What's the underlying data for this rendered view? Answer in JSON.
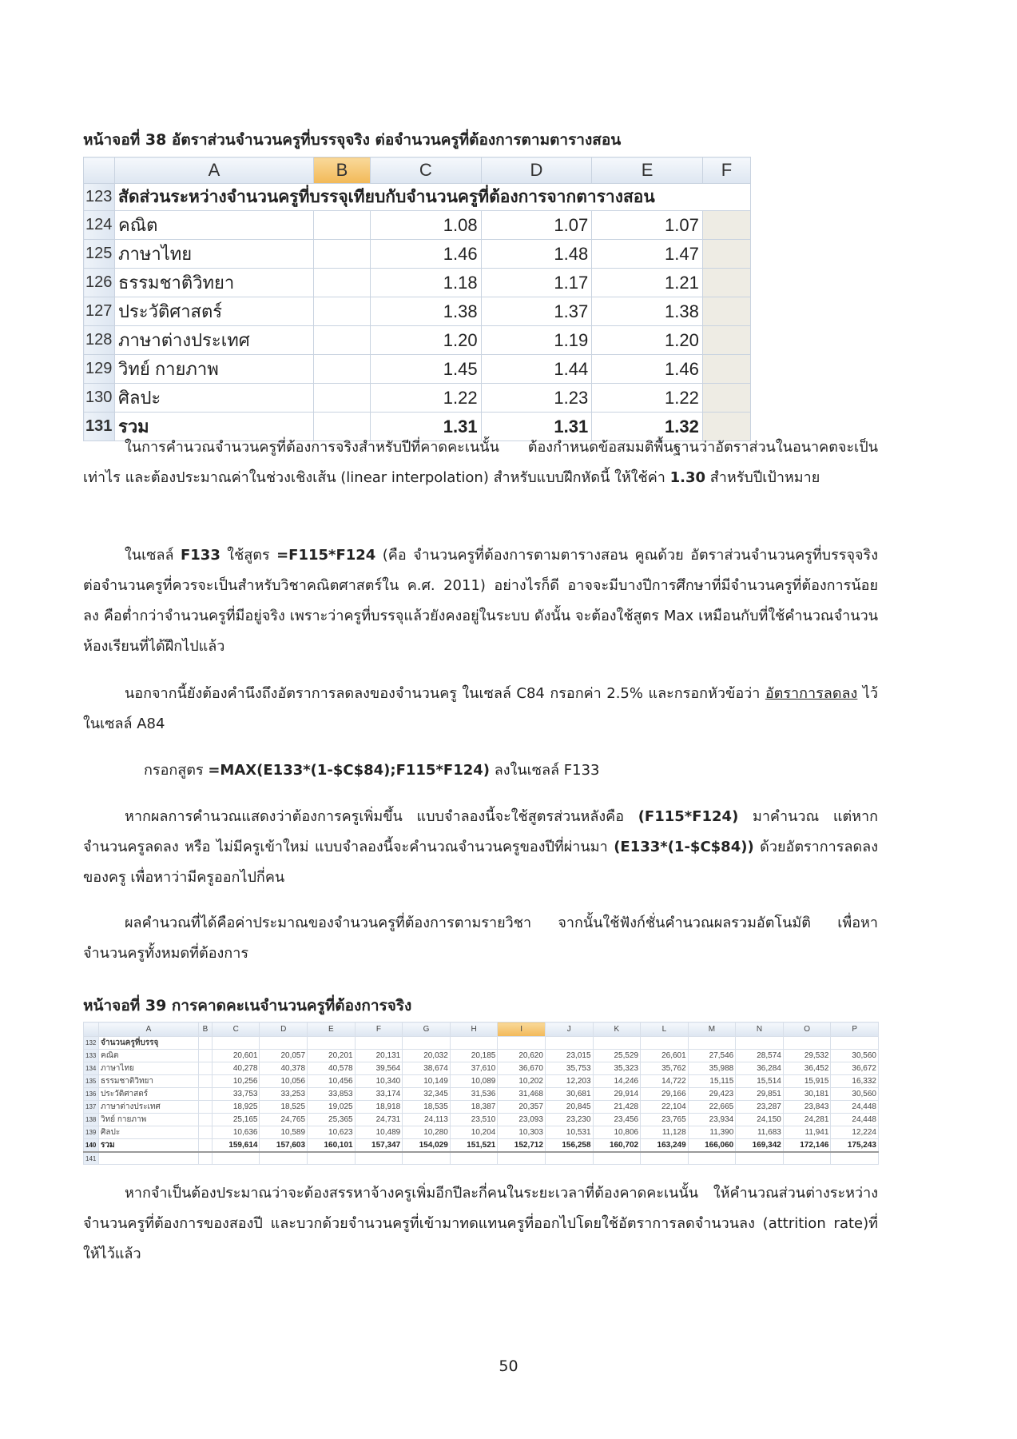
{
  "caption1": "หน้าจอที่ 38 อัตราส่วนจำนวนครูที่บรรจุจริง ต่อจำนวนครูที่ต้องการตามตารางสอน",
  "sheet1": {
    "columns": [
      "",
      "A",
      "B",
      "C",
      "D",
      "E",
      "F"
    ],
    "selected_column": "B",
    "header_row": {
      "row": "123",
      "label": "สัดส่วนระหว่างจำนวนครูที่บรรจุเทียบกับจำนวนครูที่ต้องการจากตารางสอน"
    },
    "rows": [
      {
        "row": "124",
        "label": "คณิต",
        "C": "1.08",
        "D": "1.07",
        "E": "1.07"
      },
      {
        "row": "125",
        "label": "ภาษาไทย",
        "C": "1.46",
        "D": "1.48",
        "E": "1.47"
      },
      {
        "row": "126",
        "label": "ธรรมชาติวิทยา",
        "C": "1.18",
        "D": "1.17",
        "E": "1.21"
      },
      {
        "row": "127",
        "label": "ประวัติศาสตร์",
        "C": "1.38",
        "D": "1.37",
        "E": "1.38"
      },
      {
        "row": "128",
        "label": "ภาษาต่างประเทศ",
        "C": "1.20",
        "D": "1.19",
        "E": "1.20"
      },
      {
        "row": "129",
        "label": "วิทย์ กายภาพ",
        "C": "1.45",
        "D": "1.44",
        "E": "1.46"
      },
      {
        "row": "130",
        "label": "ศิลปะ",
        "C": "1.22",
        "D": "1.23",
        "E": "1.22"
      },
      {
        "row": "131",
        "label": "รวม",
        "C": "1.31",
        "D": "1.31",
        "E": "1.32",
        "total": true
      }
    ]
  },
  "para1": {
    "text_a": "ในการคำนวณจำนวนครูที่ต้องการจริงสำหรับปีที่คาดคะเนนั้น ต้องกำหนดข้อสมมติพื้นฐานว่าอัตราส่วนในอนาคตจะเป็นเท่าไร และต้องประมาณค่าในช่วงเชิงเส้น (linear interpolation)  สำหรับแบบฝึกหัดนี้ ให้ใช้ค่า ",
    "bold_value": "1.30",
    "text_b": " สำหรับปีเป้าหมาย"
  },
  "para2": {
    "text_a": "ในเซลล์ ",
    "cell": "F133",
    "text_b": " ใช้สูตร ",
    "formula": "=F115*F124",
    "text_c": " (คือ จำนวนครูที่ต้องการตามตารางสอน คูณด้วย อัตราส่วนจำนวนครูที่บรรจุจริงต่อจำนวนครูที่ควรจะเป็นสำหรับวิชาคณิตศาสตร์ใน ค.ศ. 2011) อย่างไรก็ดี อาจจะมีบางปีการศึกษาที่มีจำนวนครูที่ต้องการน้อยลง คือต่ำกว่าจำนวนครูที่มีอยู่จริง เพราะว่าครูที่บรรจุแล้วยังคงอยู่ในระบบ  ดังนั้น จะต้องใช้สูตร Max เหมือนกับที่ใช้คำนวณจำนวนห้องเรียนที่ได้ฝึกไปแล้ว"
  },
  "para3": {
    "text_a": "นอกจากนี้ยังต้องคำนึงถึงอัตราการลดลงของจำนวนครู  ในเซลล์ C84 กรอกค่า 2.5% และกรอกหัวข้อว่า ",
    "underlined": "อัตราการลดลง",
    "text_b": " ไว้ในเซลล์ A84"
  },
  "formula_line": {
    "text_a": "กรอกสูตร ",
    "formula": "=MAX(E133*(1-$C$84);F115*F124)",
    "text_b": " ลงในเซลล์ F133"
  },
  "para4": {
    "text_a": "หากผลการคำนวณแสดงว่าต้องการครูเพิ่มขึ้น แบบจำลองนี้จะใช้สูตรส่วนหลังคือ ",
    "formula_a": "(F115*F124)",
    "text_b": " มาคำนวณ แต่หากจำนวนครูลดลง หรือ ไม่มีครูเข้าใหม่ แบบจำลองนี้จะคำนวณจำนวนครูของปีที่ผ่านมา ",
    "formula_b": "(E133*(1-$C$84))",
    "text_c": " ด้วยอัตราการลดลงของครู เพื่อหาว่ามีครูออกไปกี่คน"
  },
  "para5": "ผลคำนวณที่ได้คือค่าประมาณของจำนวนครูที่ต้องการตามรายวิชา  จากนั้นใช้ฟังก์ชั่นคำนวณผลรวมอัตโนมัติ เพื่อหาจำนวนครูทั้งหมดที่ต้องการ",
  "caption2": "หน้าจอที่ 39 การคาดคะเนจำนวนครูที่ต้องการจริง",
  "sheet2": {
    "columns": [
      "",
      "A",
      "B",
      "C",
      "D",
      "E",
      "F",
      "G",
      "H",
      "I",
      "J",
      "K",
      "L",
      "M",
      "N",
      "O",
      "P"
    ],
    "selected_column": "I",
    "header_row": {
      "row": "132",
      "label": "จำนวนครูที่บรรจุ"
    },
    "rows": [
      {
        "row": "133",
        "label": "คณิต",
        "values": [
          "20,601",
          "20,057",
          "20,201",
          "20,131",
          "20,032",
          "20,185",
          "20,620",
          "23,015",
          "25,529",
          "26,601",
          "27,546",
          "28,574",
          "29,532",
          "30,560"
        ]
      },
      {
        "row": "134",
        "label": "ภาษาไทย",
        "values": [
          "40,278",
          "40,378",
          "40,578",
          "39,564",
          "38,674",
          "37,610",
          "36,670",
          "35,753",
          "35,323",
          "35,762",
          "35,988",
          "36,284",
          "36,452",
          "36,672"
        ]
      },
      {
        "row": "135",
        "label": "ธรรมชาติวิทยา",
        "values": [
          "10,256",
          "10,056",
          "10,456",
          "10,340",
          "10,149",
          "10,089",
          "10,202",
          "12,203",
          "14,246",
          "14,722",
          "15,115",
          "15,514",
          "15,915",
          "16,332"
        ]
      },
      {
        "row": "136",
        "label": "ประวัติศาสตร์",
        "values": [
          "33,753",
          "33,253",
          "33,853",
          "33,174",
          "32,345",
          "31,536",
          "31,468",
          "30,681",
          "29,914",
          "29,166",
          "29,423",
          "29,851",
          "30,181",
          "30,560"
        ]
      },
      {
        "row": "137",
        "label": "ภาษาต่างประเทศ",
        "values": [
          "18,925",
          "18,525",
          "19,025",
          "18,918",
          "18,535",
          "18,387",
          "20,357",
          "20,845",
          "21,428",
          "22,104",
          "22,665",
          "23,287",
          "23,843",
          "24,448"
        ]
      },
      {
        "row": "138",
        "label": "วิทย์ กายภาพ",
        "values": [
          "25,165",
          "24,765",
          "25,365",
          "24,731",
          "24,113",
          "23,510",
          "23,093",
          "23,230",
          "23,456",
          "23,765",
          "23,934",
          "24,150",
          "24,281",
          "24,448"
        ]
      },
      {
        "row": "139",
        "label": "ศิลปะ",
        "values": [
          "10,636",
          "10,589",
          "10,623",
          "10,489",
          "10,280",
          "10,204",
          "10,303",
          "10,531",
          "10,806",
          "11,128",
          "11,390",
          "11,683",
          "11,941",
          "12,224"
        ]
      },
      {
        "row": "140",
        "label": "รวม",
        "total": true,
        "values": [
          "159,614",
          "157,603",
          "160,101",
          "157,347",
          "154,029",
          "151,521",
          "152,712",
          "156,258",
          "160,702",
          "163,249",
          "166,060",
          "169,342",
          "172,146",
          "175,243"
        ]
      }
    ],
    "last_row": "141"
  },
  "para6": "หากจำเป็นต้องประมาณว่าจะต้องสรรหาจ้างครูเพิ่มอีกปีละกี่คนในระยะเวลาที่ต้องคาดคะเนนั้น ให้คำนวณส่วนต่างระหว่างจำนวนครูที่ต้องการของสองปี และบวกด้วยจำนวนครูที่เข้ามาทดแทนครูที่ออกไปโดยใช้อัตราการลดจำนวนลง (attrition rate)ที่ให้ไว้แล้ว",
  "page_number": "50"
}
